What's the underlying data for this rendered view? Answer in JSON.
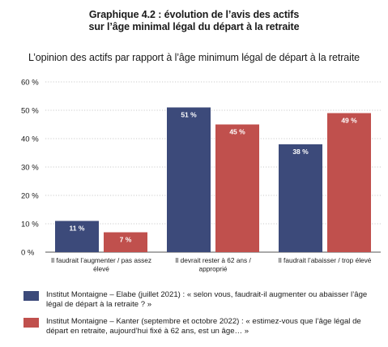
{
  "title_lines": [
    "Graphique 4.2 : évolution de l’avis des actifs",
    "sur l’âge minimal légal du départ à la retraite"
  ],
  "subtitle": "L’opinion des actifs par rapport à l’âge minimum légal de départ à la retraite",
  "colors": {
    "series1": "#3c4a7a",
    "series2": "#c0504d",
    "grid": "#bbbbbb",
    "axis": "#555555"
  },
  "chart_data": {
    "type": "bar",
    "title": "L’opinion des actifs par rapport à l’âge minimum légal de départ à la retraite",
    "xlabel": "",
    "ylabel": "",
    "ylim": [
      0,
      60
    ],
    "yticks": [
      0,
      10,
      20,
      30,
      40,
      50,
      60
    ],
    "ytick_labels": [
      "0 %",
      "10 %",
      "20 %",
      "30 %",
      "40 %",
      "50 %",
      "60 %"
    ],
    "grid": true,
    "legend_position": "bottom",
    "categories": [
      [
        "Il faudrait l’augmenter / pas assez",
        "élevé"
      ],
      [
        "Il devrait rester à 62 ans /",
        "approprié"
      ],
      [
        "Il faudrait l’abaisser / trop élevé"
      ]
    ],
    "series": [
      {
        "name": "Institut Montaigne – Elabe (juillet 2021) : « selon vous, faudrait-il augmenter ou abaisser l’âge légal de départ à la retraite ? »",
        "values": [
          11,
          51,
          38
        ],
        "labels": [
          "11 %",
          "51 %",
          "38 %"
        ]
      },
      {
        "name": "Institut Montaigne – Kanter (septembre et octobre 2022) : « estimez-vous que l’âge légal de départ en retraite, aujourd’hui fixé à 62 ans, est un âge… »",
        "values": [
          7,
          45,
          49
        ],
        "labels": [
          "7 %",
          "45 %",
          "49 %"
        ]
      }
    ]
  }
}
